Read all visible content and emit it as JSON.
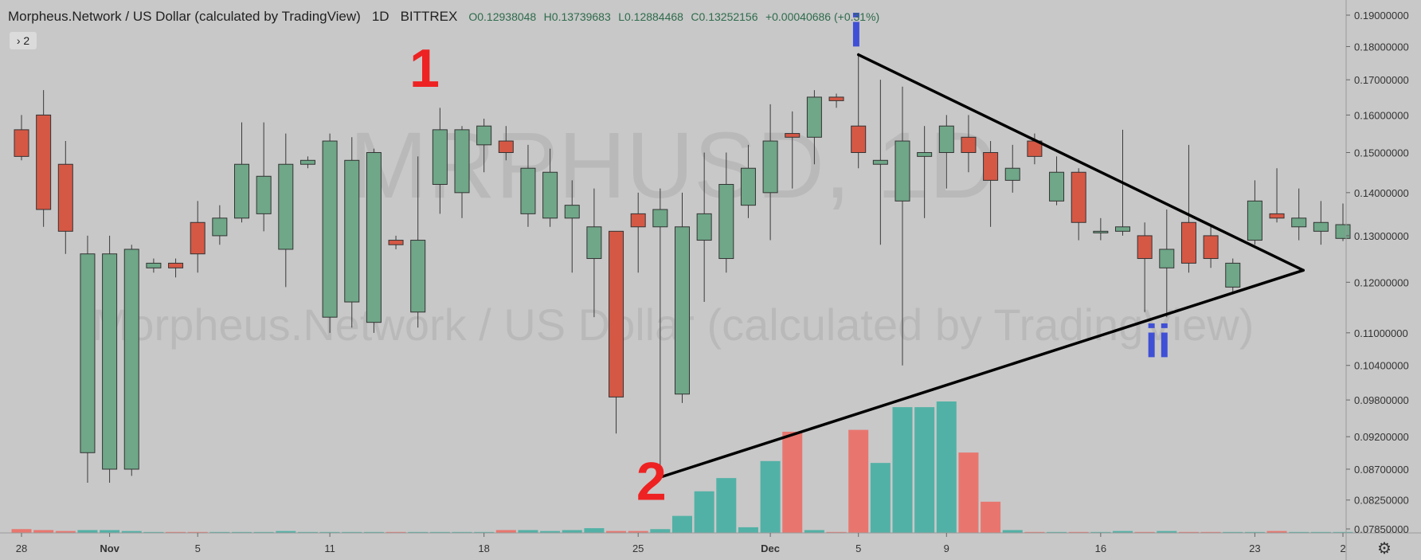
{
  "header": {
    "symbol_title": "Morpheus.Network / US Dollar (calculated by TradingView)",
    "interval": "1D",
    "exchange": "BITTREX",
    "open": "O0.12938048",
    "high": "H0.13739683",
    "low": "L0.12884468",
    "close": "C0.13252156",
    "change": "+0.00040686 (+0.31%)"
  },
  "indicators_toggle": {
    "label": "2"
  },
  "watermark": {
    "ticker": "MRPHUSD, 1D",
    "name": "Morpheus.Network / US Dollar (calculated by TradingView)"
  },
  "colors": {
    "up": "#6fa788",
    "down": "#d55845",
    "vol_up": "#52b1a6",
    "vol_down": "#e8766f",
    "background": "#c8c8c8",
    "annotation_red": "#ee2222",
    "annotation_blue": "#3f4fd6",
    "trendline": "#000000"
  },
  "annotations": {
    "label_1": "1",
    "label_2": "2",
    "label_i": "i",
    "label_ii": "ii"
  },
  "chart_data": {
    "type": "candlestick",
    "interval": "1D",
    "y_scale": "log",
    "y_ticks": [
      "0.19000000",
      "0.18000000",
      "0.17000000",
      "0.16000000",
      "0.15000000",
      "0.14000000",
      "0.13000000",
      "0.12000000",
      "0.11000000",
      "0.10400000",
      "0.09800000",
      "0.09200000",
      "0.08700000",
      "0.08250000",
      "0.07850000"
    ],
    "x_ticks": [
      {
        "label": "28",
        "day": 0
      },
      {
        "label": "Nov",
        "day": 4
      },
      {
        "label": "5",
        "day": 8
      },
      {
        "label": "11",
        "day": 14
      },
      {
        "label": "18",
        "day": 21
      },
      {
        "label": "25",
        "day": 28
      },
      {
        "label": "Dec",
        "day": 34
      },
      {
        "label": "5",
        "day": 38
      },
      {
        "label": "9",
        "day": 42
      },
      {
        "label": "16",
        "day": 49
      },
      {
        "label": "23",
        "day": 56
      },
      {
        "label": "2",
        "day": 60
      }
    ],
    "candles": [
      {
        "o": 0.156,
        "h": 0.16,
        "l": 0.148,
        "c": 0.149,
        "v": 4
      },
      {
        "o": 0.16,
        "h": 0.167,
        "l": 0.132,
        "c": 0.136,
        "v": 3
      },
      {
        "o": 0.147,
        "h": 0.153,
        "l": 0.126,
        "c": 0.131,
        "v": 2
      },
      {
        "o": 0.0895,
        "h": 0.13,
        "l": 0.085,
        "c": 0.126,
        "v": 3
      },
      {
        "o": 0.087,
        "h": 0.13,
        "l": 0.085,
        "c": 0.126,
        "v": 3
      },
      {
        "o": 0.087,
        "h": 0.128,
        "l": 0.086,
        "c": 0.127,
        "v": 2
      },
      {
        "o": 0.123,
        "h": 0.125,
        "l": 0.122,
        "c": 0.124,
        "v": 1
      },
      {
        "o": 0.124,
        "h": 0.125,
        "l": 0.121,
        "c": 0.123,
        "v": 1
      },
      {
        "o": 0.133,
        "h": 0.138,
        "l": 0.122,
        "c": 0.126,
        "v": 1
      },
      {
        "o": 0.13,
        "h": 0.137,
        "l": 0.128,
        "c": 0.134,
        "v": 1
      },
      {
        "o": 0.134,
        "h": 0.158,
        "l": 0.133,
        "c": 0.147,
        "v": 1
      },
      {
        "o": 0.135,
        "h": 0.158,
        "l": 0.131,
        "c": 0.144,
        "v": 1
      },
      {
        "o": 0.127,
        "h": 0.155,
        "l": 0.119,
        "c": 0.147,
        "v": 2
      },
      {
        "o": 0.147,
        "h": 0.149,
        "l": 0.146,
        "c": 0.148,
        "v": 1
      },
      {
        "o": 0.113,
        "h": 0.155,
        "l": 0.11,
        "c": 0.153,
        "v": 1
      },
      {
        "o": 0.116,
        "h": 0.154,
        "l": 0.111,
        "c": 0.148,
        "v": 1
      },
      {
        "o": 0.112,
        "h": 0.151,
        "l": 0.11,
        "c": 0.15,
        "v": 1
      },
      {
        "o": 0.129,
        "h": 0.13,
        "l": 0.127,
        "c": 0.128,
        "v": 1
      },
      {
        "o": 0.114,
        "h": 0.149,
        "l": 0.111,
        "c": 0.129,
        "v": 1
      },
      {
        "o": 0.142,
        "h": 0.162,
        "l": 0.135,
        "c": 0.156,
        "v": 1
      },
      {
        "o": 0.14,
        "h": 0.157,
        "l": 0.134,
        "c": 0.156,
        "v": 1
      },
      {
        "o": 0.152,
        "h": 0.159,
        "l": 0.145,
        "c": 0.157,
        "v": 1
      },
      {
        "o": 0.153,
        "h": 0.157,
        "l": 0.148,
        "c": 0.15,
        "v": 3
      },
      {
        "o": 0.135,
        "h": 0.152,
        "l": 0.132,
        "c": 0.146,
        "v": 3
      },
      {
        "o": 0.134,
        "h": 0.151,
        "l": 0.132,
        "c": 0.145,
        "v": 2
      },
      {
        "o": 0.134,
        "h": 0.143,
        "l": 0.122,
        "c": 0.137,
        "v": 3
      },
      {
        "o": 0.125,
        "h": 0.141,
        "l": 0.113,
        "c": 0.132,
        "v": 5
      },
      {
        "o": 0.131,
        "h": 0.131,
        "l": 0.0925,
        "c": 0.0985,
        "v": 2
      },
      {
        "o": 0.135,
        "h": 0.14,
        "l": 0.122,
        "c": 0.132,
        "v": 2
      },
      {
        "o": 0.132,
        "h": 0.141,
        "l": 0.0855,
        "c": 0.136,
        "v": 4
      },
      {
        "o": 0.099,
        "h": 0.14,
        "l": 0.0975,
        "c": 0.132,
        "v": 18
      },
      {
        "o": 0.129,
        "h": 0.15,
        "l": 0.116,
        "c": 0.135,
        "v": 44
      },
      {
        "o": 0.125,
        "h": 0.15,
        "l": 0.122,
        "c": 0.142,
        "v": 58
      },
      {
        "o": 0.137,
        "h": 0.152,
        "l": 0.134,
        "c": 0.146,
        "v": 6
      },
      {
        "o": 0.14,
        "h": 0.163,
        "l": 0.129,
        "c": 0.153,
        "v": 76
      },
      {
        "o": 0.155,
        "h": 0.161,
        "l": 0.141,
        "c": 0.154,
        "v": 107
      },
      {
        "o": 0.154,
        "h": 0.167,
        "l": 0.147,
        "c": 0.165,
        "v": 3
      },
      {
        "o": 0.165,
        "h": 0.166,
        "l": 0.162,
        "c": 0.164,
        "v": 1
      },
      {
        "o": 0.157,
        "h": 0.178,
        "l": 0.146,
        "c": 0.15,
        "v": 109
      },
      {
        "o": 0.147,
        "h": 0.17,
        "l": 0.128,
        "c": 0.148,
        "v": 74
      },
      {
        "o": 0.138,
        "h": 0.168,
        "l": 0.104,
        "c": 0.153,
        "v": 133
      },
      {
        "o": 0.149,
        "h": 0.157,
        "l": 0.134,
        "c": 0.15,
        "v": 133
      },
      {
        "o": 0.15,
        "h": 0.16,
        "l": 0.141,
        "c": 0.157,
        "v": 139
      },
      {
        "o": 0.154,
        "h": 0.16,
        "l": 0.145,
        "c": 0.15,
        "v": 85
      },
      {
        "o": 0.15,
        "h": 0.153,
        "l": 0.132,
        "c": 0.143,
        "v": 33
      },
      {
        "o": 0.143,
        "h": 0.152,
        "l": 0.14,
        "c": 0.146,
        "v": 3
      },
      {
        "o": 0.153,
        "h": 0.155,
        "l": 0.147,
        "c": 0.149,
        "v": 1
      },
      {
        "o": 0.138,
        "h": 0.149,
        "l": 0.137,
        "c": 0.145,
        "v": 1
      },
      {
        "o": 0.145,
        "h": 0.146,
        "l": 0.129,
        "c": 0.133,
        "v": 1
      },
      {
        "o": 0.131,
        "h": 0.134,
        "l": 0.129,
        "c": 0.131,
        "v": 1
      },
      {
        "o": 0.131,
        "h": 0.156,
        "l": 0.13,
        "c": 0.132,
        "v": 2
      },
      {
        "o": 0.13,
        "h": 0.133,
        "l": 0.114,
        "c": 0.125,
        "v": 1
      },
      {
        "o": 0.123,
        "h": 0.136,
        "l": 0.113,
        "c": 0.127,
        "v": 2
      },
      {
        "o": 0.133,
        "h": 0.152,
        "l": 0.122,
        "c": 0.124,
        "v": 1
      },
      {
        "o": 0.13,
        "h": 0.132,
        "l": 0.123,
        "c": 0.125,
        "v": 1
      },
      {
        "o": 0.119,
        "h": 0.125,
        "l": 0.118,
        "c": 0.124,
        "v": 1
      },
      {
        "o": 0.129,
        "h": 0.143,
        "l": 0.128,
        "c": 0.138,
        "v": 1
      },
      {
        "o": 0.135,
        "h": 0.146,
        "l": 0.133,
        "c": 0.134,
        "v": 2
      },
      {
        "o": 0.132,
        "h": 0.141,
        "l": 0.129,
        "c": 0.134,
        "v": 1
      },
      {
        "o": 0.131,
        "h": 0.138,
        "l": 0.128,
        "c": 0.133,
        "v": 1
      },
      {
        "o": 0.1294,
        "h": 0.1374,
        "l": 0.1288,
        "c": 0.1325,
        "v": 1
      }
    ],
    "trendlines": [
      {
        "from": {
          "day": 38,
          "price": 0.1775
        },
        "to": {
          "day": 58.2,
          "price": 0.1225
        }
      },
      {
        "from": {
          "day": 29,
          "price": 0.0858
        },
        "to": {
          "day": 58.2,
          "price": 0.1225
        }
      }
    ],
    "annotation_anchors": {
      "label_1": {
        "day": 18.3,
        "price": 0.168
      },
      "label_2": {
        "day": 28.6,
        "price": 0.0825
      },
      "label_i": {
        "day": 37.9,
        "price": 0.18
      },
      "label_ii": {
        "day": 51.6,
        "price": 0.1055
      }
    }
  }
}
